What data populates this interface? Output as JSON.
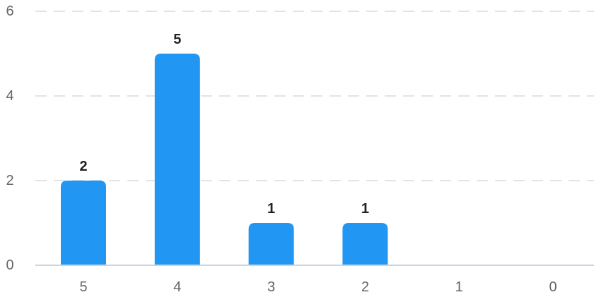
{
  "chart_data": {
    "type": "bar",
    "categories": [
      "5",
      "4",
      "3",
      "2",
      "1",
      "0"
    ],
    "values": [
      2,
      5,
      1,
      1,
      0,
      0
    ],
    "data_labels": [
      "2",
      "5",
      "1",
      "1",
      "",
      ""
    ],
    "ylim": [
      0,
      6
    ],
    "y_ticks": [
      "0",
      "2",
      "4",
      "6"
    ],
    "grid": true,
    "legend": "none",
    "bar_color": "#2196F3"
  }
}
